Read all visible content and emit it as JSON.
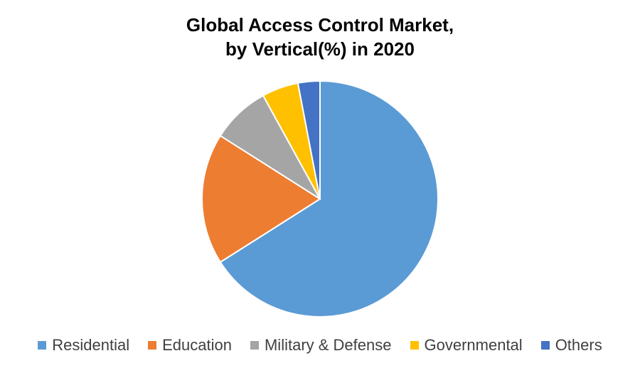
{
  "chart_data": {
    "type": "pie",
    "title": "Global Access Control Market,",
    "subtitle": "by Vertical(%) in 2020",
    "categories": [
      "Residential",
      "Education",
      "Military & Defense",
      "Governmental",
      "Others"
    ],
    "values": [
      66,
      18,
      8,
      5,
      3
    ],
    "colors": [
      "#5B9BD5",
      "#ED7D31",
      "#A5A5A5",
      "#FFC000",
      "#4472C4"
    ],
    "start_angle": "12 o'clock",
    "direction": "clockwise",
    "legend": "bottom"
  }
}
